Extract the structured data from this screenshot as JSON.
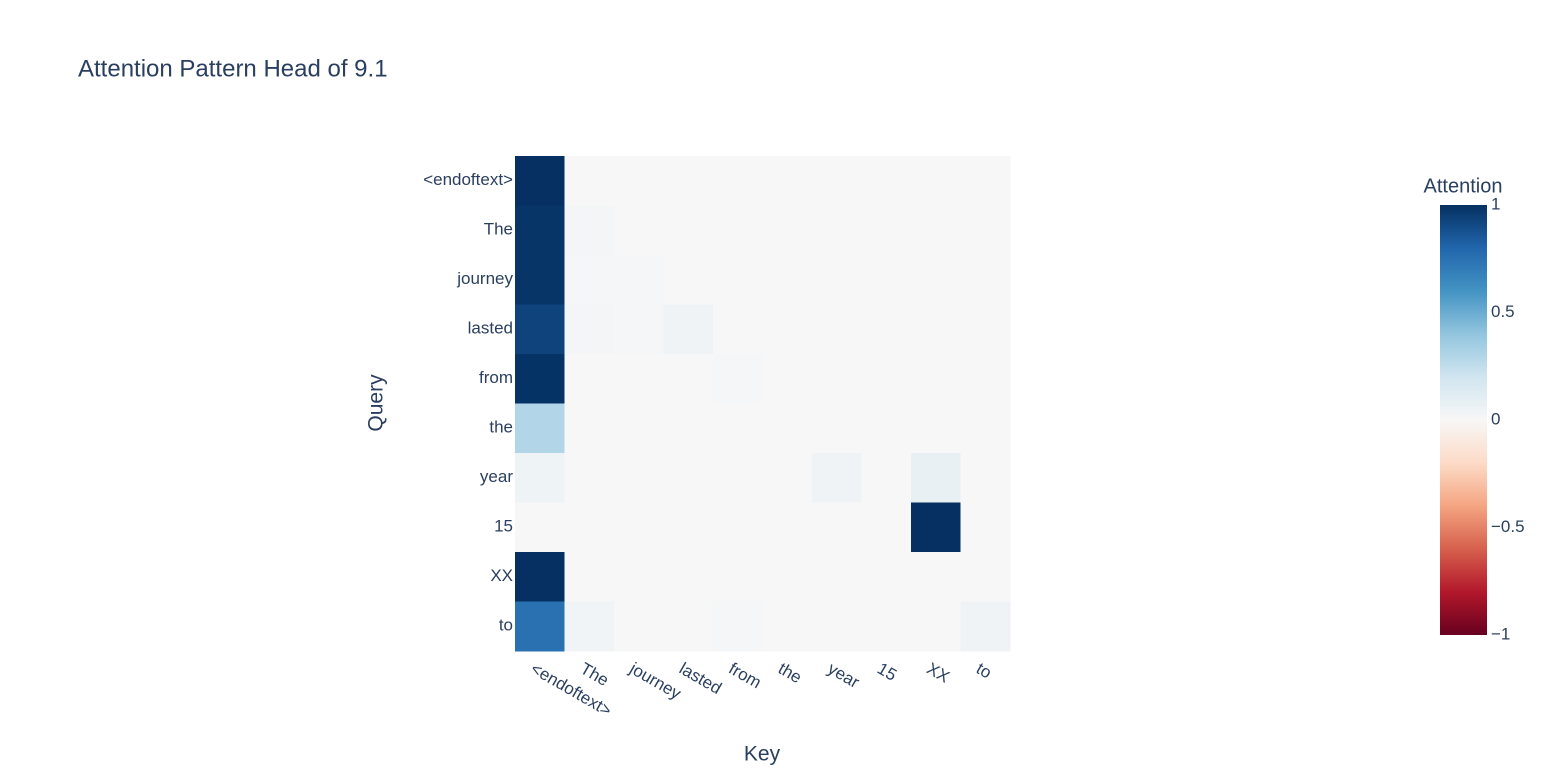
{
  "chart_data": {
    "type": "heatmap",
    "title": "Attention Pattern Head of 9.1",
    "x_label": "Key",
    "y_label": "Query",
    "colorbar_title": "Attention",
    "x": [
      "<endoftext>",
      "The",
      "journey",
      "lasted",
      "from",
      "the",
      "year",
      "15",
      "XX",
      "to"
    ],
    "y": [
      "<endoftext>",
      "The",
      "journey",
      "lasted",
      "from",
      "the",
      "year",
      "15",
      "XX",
      "to"
    ],
    "z": [
      [
        1,
        0,
        0,
        0,
        0,
        0,
        0,
        0,
        0,
        0
      ],
      [
        0.98,
        0.02,
        0,
        0,
        0,
        0,
        0,
        0,
        0,
        0
      ],
      [
        0.98,
        0.01,
        0.01,
        0,
        0,
        0,
        0,
        0,
        0,
        0
      ],
      [
        0.93,
        0.02,
        0.01,
        0.04,
        0,
        0,
        0,
        0,
        0,
        0
      ],
      [
        0.99,
        0,
        0,
        0,
        0.01,
        0,
        0,
        0,
        0,
        0
      ],
      [
        0.3,
        0,
        0,
        0,
        0,
        0,
        0,
        0,
        0,
        0
      ],
      [
        0.05,
        0,
        0,
        0,
        0,
        0,
        0.04,
        0,
        0.08,
        0
      ],
      [
        0,
        0,
        0,
        0,
        0,
        0,
        0,
        0,
        1,
        0
      ],
      [
        1,
        0,
        0,
        0,
        0,
        0,
        0,
        0,
        0,
        0
      ],
      [
        0.75,
        0.03,
        0,
        0,
        0.01,
        0,
        0,
        0,
        0,
        0.04
      ]
    ],
    "zlim": [
      -1,
      1
    ],
    "colorscale": [
      "#67001f",
      "#b2182b",
      "#d6604d",
      "#f4a582",
      "#fddbc7",
      "#f7f7f7",
      "#d1e5f0",
      "#92c5de",
      "#4393c3",
      "#2166ac",
      "#053061"
    ],
    "colorbar_ticks": [
      {
        "value": -1,
        "label": "−1"
      },
      {
        "value": -0.5,
        "label": "−0.5"
      },
      0,
      0.5,
      1
    ]
  }
}
